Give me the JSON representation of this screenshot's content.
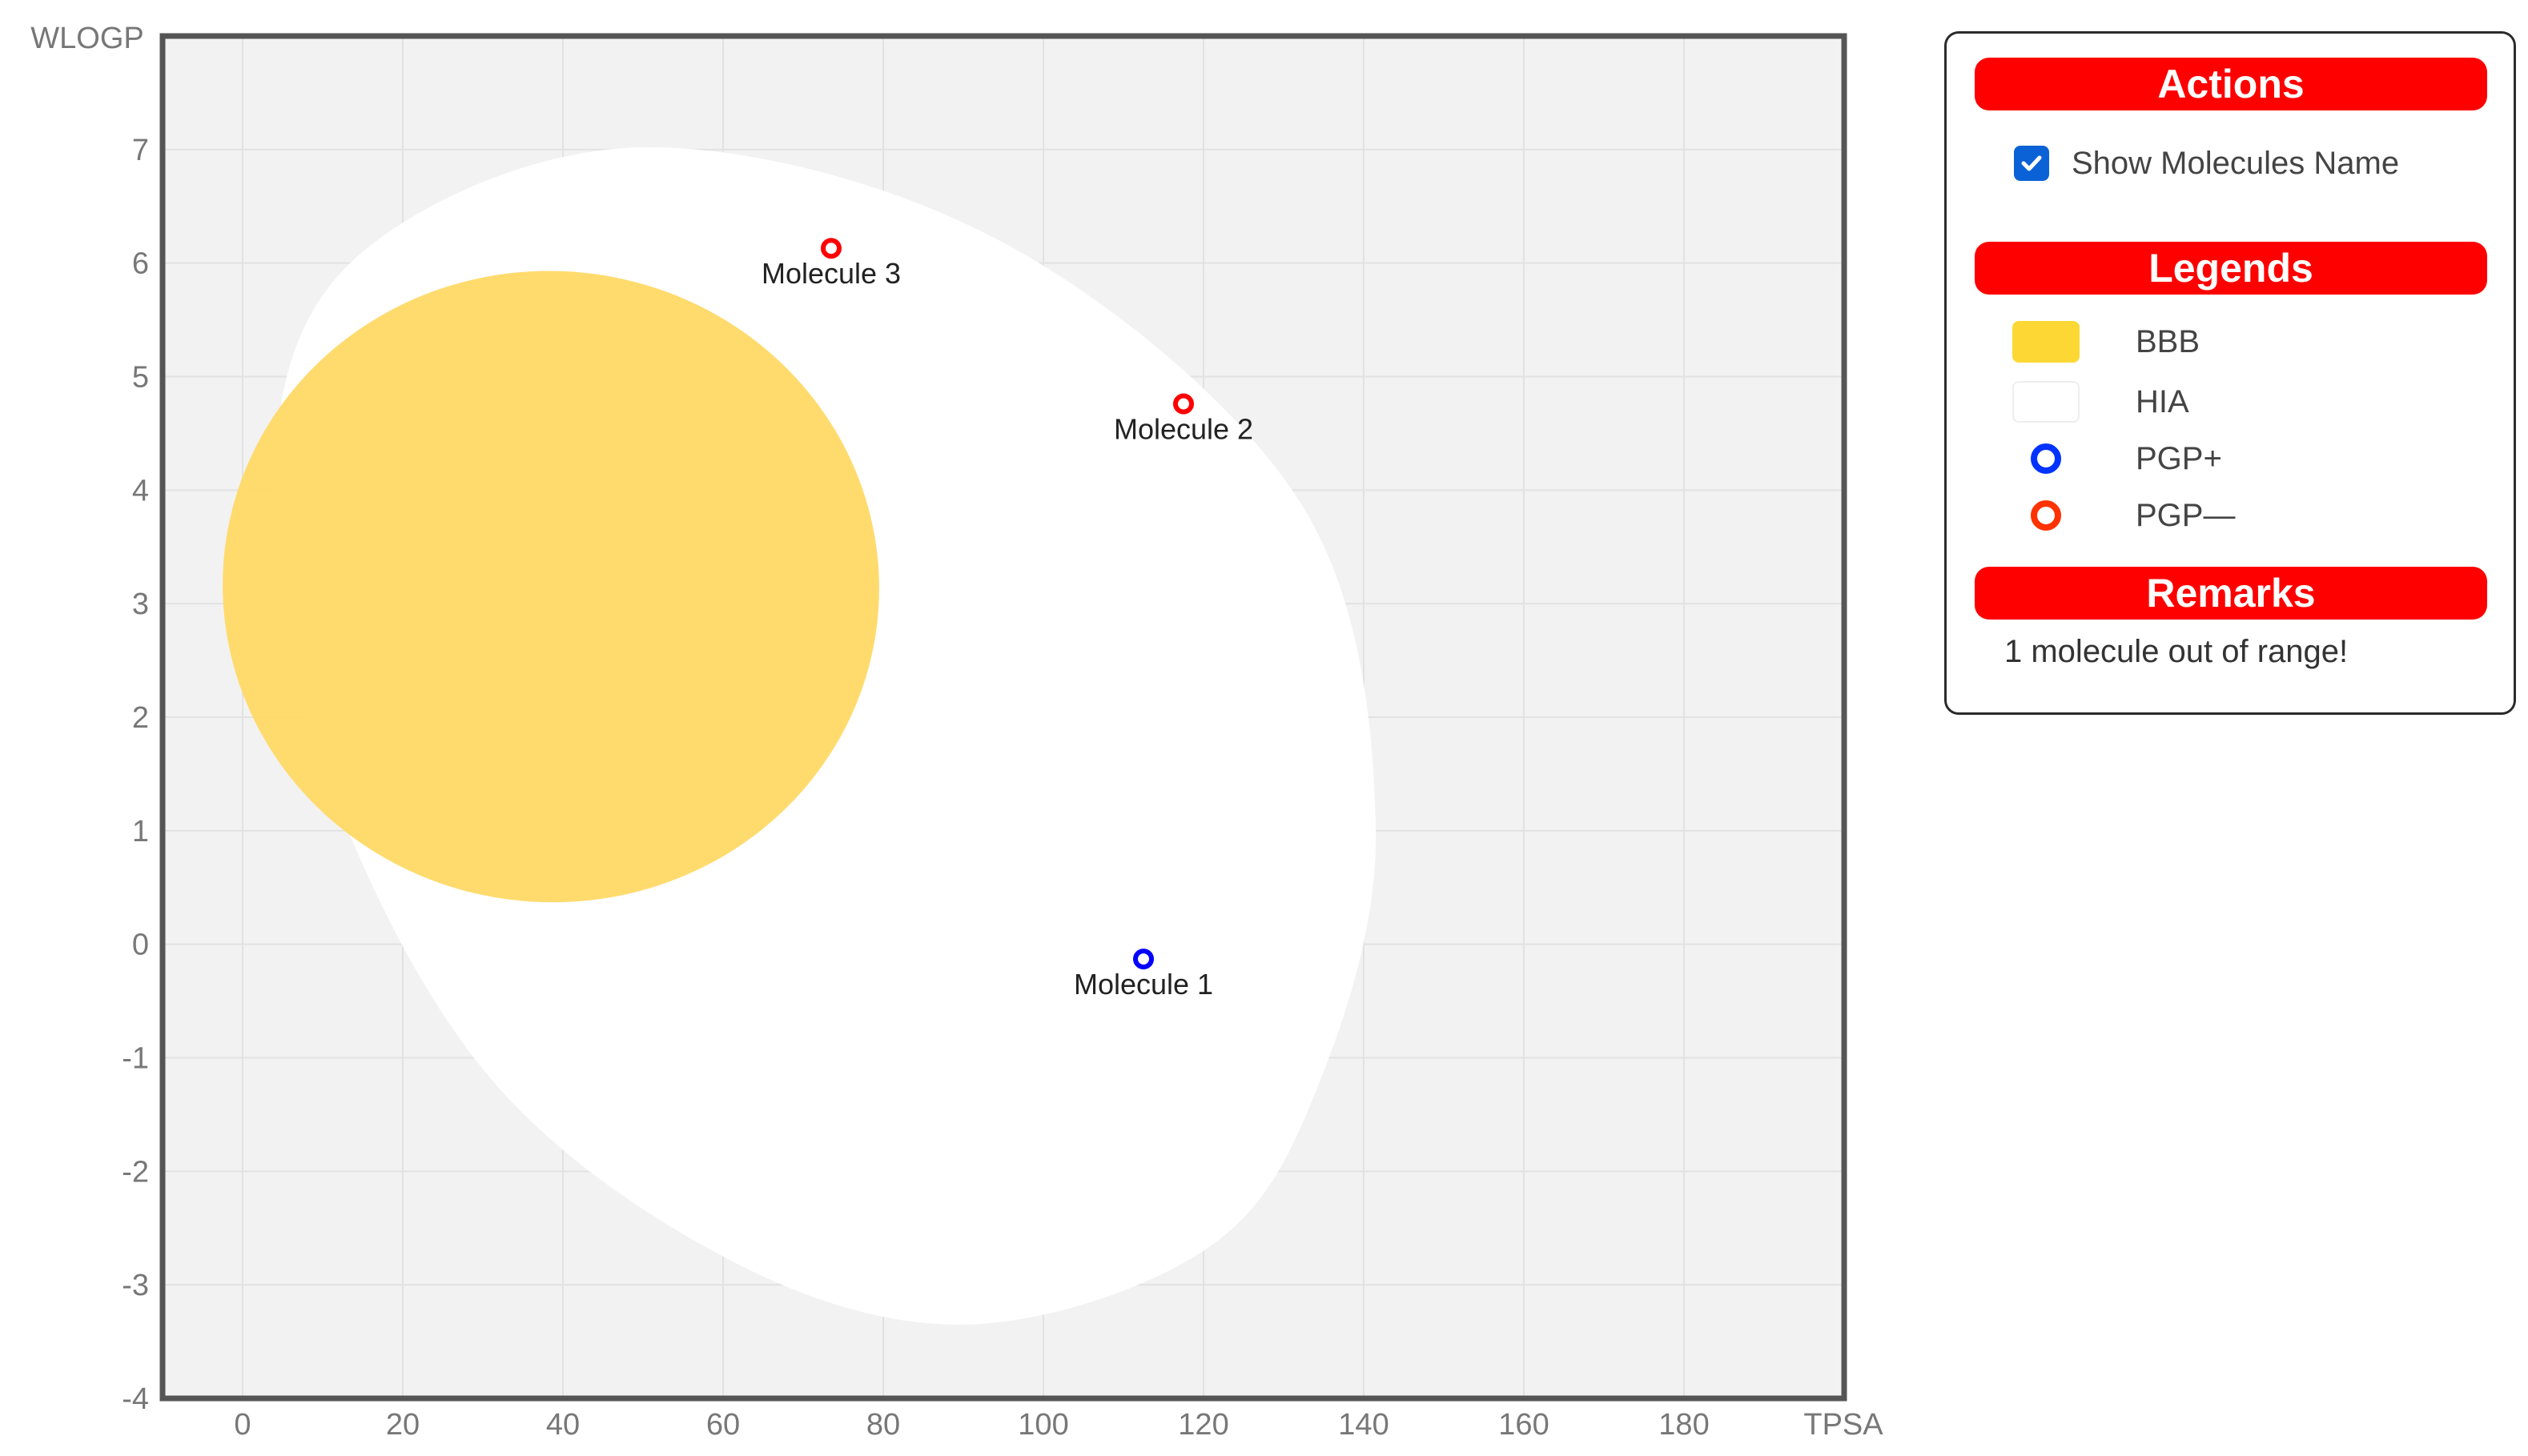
{
  "chart_data": {
    "type": "scatter",
    "title": "",
    "xlabel": "TPSA",
    "ylabel": "WLOGP",
    "xlim": [
      -10,
      200
    ],
    "ylim": [
      -4,
      8
    ],
    "x_ticks": [
      "0",
      "20",
      "40",
      "60",
      "80",
      "100",
      "120",
      "140",
      "160",
      "180"
    ],
    "y_ticks": [
      "-4",
      "-3",
      "-2",
      "-1",
      "0",
      "1",
      "2",
      "3",
      "4",
      "5",
      "6",
      "7"
    ],
    "grid": true,
    "regions": [
      {
        "name": "HIA",
        "color": "#ffffff",
        "shape": "egg"
      },
      {
        "name": "BBB",
        "color": "#ffd966",
        "shape": "ellipse"
      }
    ],
    "points": [
      {
        "name": "Molecule 1",
        "x": 112.5,
        "y": -0.13,
        "class": "PGP+",
        "color": "#0000ff"
      },
      {
        "name": "Molecule 2",
        "x": 117.5,
        "y": 4.76,
        "class": "PGP—",
        "color": "#ff0000"
      },
      {
        "name": "Molecule 3",
        "x": 73.5,
        "y": 6.13,
        "class": "PGP—",
        "color": "#ff0000"
      }
    ],
    "colors": {
      "plot_bg": "#f2f2f2",
      "grid": "#e2e2e2",
      "frame": "#555555",
      "tick_text": "#777777"
    }
  },
  "panel": {
    "actions_title": "Actions",
    "show_names_label": "Show Molecules Name",
    "show_names_checked": true,
    "legends_title": "Legends",
    "legend": [
      {
        "label": "BBB",
        "type": "swatch",
        "color": "#fdd835"
      },
      {
        "label": "HIA",
        "type": "swatch",
        "color": "#ffffff"
      },
      {
        "label": "PGP+",
        "type": "ring",
        "color": "#0033ff"
      },
      {
        "label": "PGP—",
        "type": "ring",
        "color": "#ff3300"
      }
    ],
    "remarks_title": "Remarks",
    "remark_text": "1 molecule out of range!"
  }
}
